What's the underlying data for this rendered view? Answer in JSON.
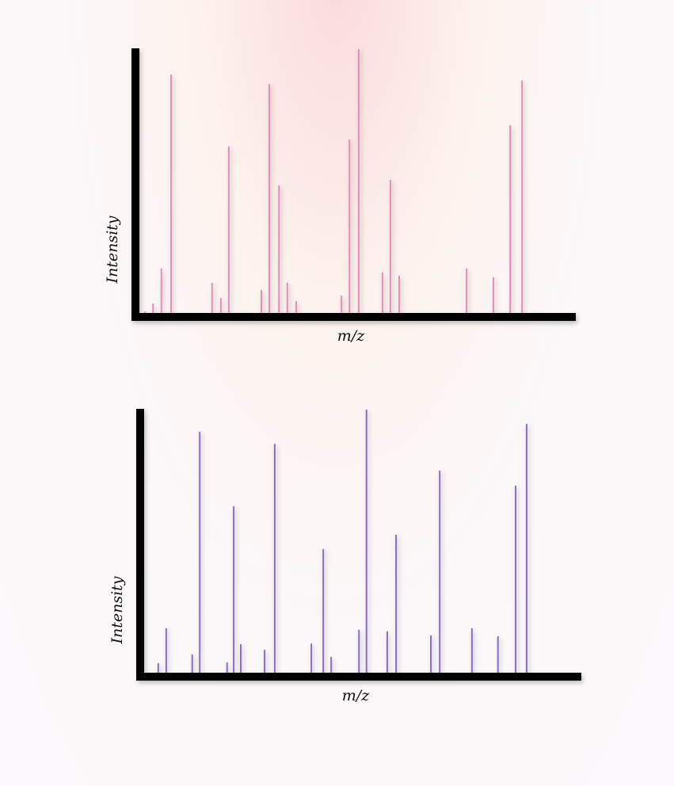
{
  "chart_data": [
    {
      "type": "stem",
      "x_label": "m/z",
      "y_label": "Intensity",
      "color": "#e68cbf",
      "xlim": [
        0,
        100
      ],
      "ylim": [
        0,
        100
      ],
      "x": [
        2.2,
        4.0,
        5.9,
        8.1,
        17.4,
        19.4,
        21.2,
        28.6,
        30.4,
        32.6,
        34.5,
        36.5,
        46.8,
        48.6,
        50.7,
        56.1,
        57.9,
        59.9,
        75.2,
        81.3,
        85.1,
        87.8
      ],
      "values": [
        0.9,
        3.9,
        17.1,
        90.4,
        11.7,
        6.0,
        63.2,
        9.0,
        86.8,
        48.5,
        11.7,
        4.8,
        6.9,
        65.9,
        100,
        15.6,
        50.6,
        14.4,
        17.1,
        13.8,
        71.3,
        88.2
      ]
    },
    {
      "type": "stem",
      "x_label": "m/z",
      "y_label": "Intensity",
      "color": "#8c6cc4",
      "xlim": [
        0,
        100
      ],
      "ylim": [
        0,
        100
      ],
      "x": [
        4.1,
        5.9,
        11.8,
        13.5,
        19.7,
        21.2,
        22.8,
        28.2,
        30.5,
        38.8,
        41.5,
        43.3,
        49.6,
        51.3,
        56.0,
        58.0,
        65.9,
        67.9,
        75.2,
        81.1,
        85.1,
        87.6
      ],
      "values": [
        3.6,
        16.9,
        6.9,
        91.6,
        3.9,
        63.3,
        10.8,
        8.7,
        87.0,
        11.1,
        47.0,
        6.0,
        16.3,
        100,
        15.7,
        52.4,
        14.2,
        76.8,
        16.9,
        13.9,
        71.1,
        94.6
      ]
    }
  ]
}
